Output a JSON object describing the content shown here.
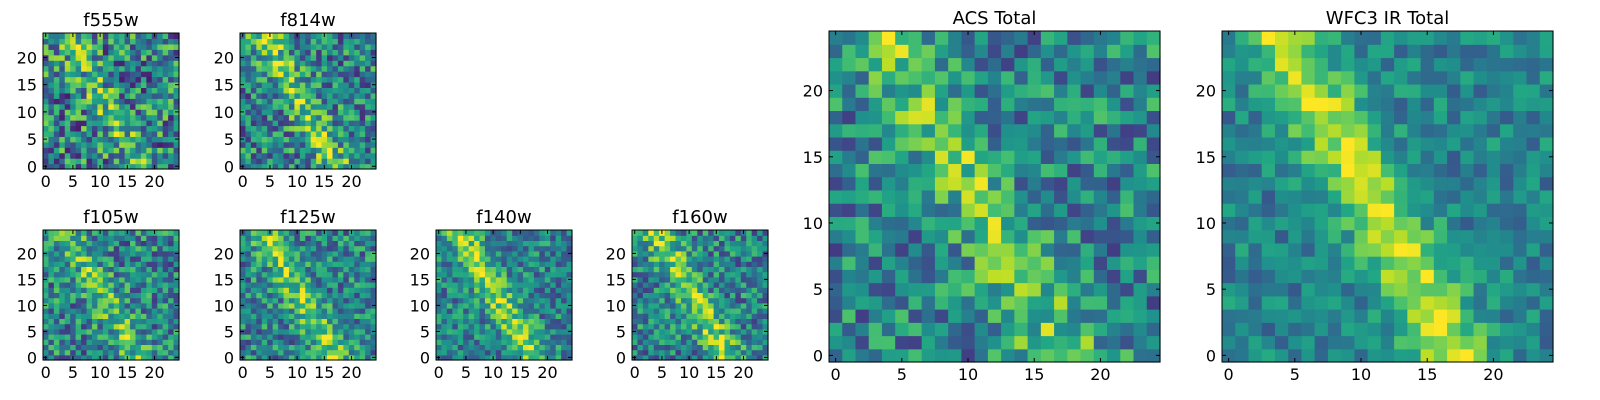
{
  "figure": {
    "colormap": "viridis",
    "colors": {
      "low": "#440154",
      "mid": "#21918c",
      "high": "#fde725",
      "axis": "#000000"
    }
  },
  "chart_data": [
    {
      "type": "heatmap",
      "title": "f555w",
      "grid_size": 25,
      "seed": 11,
      "signal": 0.35,
      "noise": 0.75,
      "xticks": [
        0,
        5,
        10,
        15,
        20
      ],
      "yticks": [
        0,
        5,
        10,
        15,
        20
      ],
      "xlim": [
        0,
        24
      ],
      "ylim": [
        0,
        24
      ]
    },
    {
      "type": "heatmap",
      "title": "f814w",
      "grid_size": 25,
      "seed": 23,
      "signal": 0.55,
      "noise": 0.65,
      "xticks": [
        0,
        5,
        10,
        15,
        20
      ],
      "yticks": [
        0,
        5,
        10,
        15,
        20
      ],
      "xlim": [
        0,
        24
      ],
      "ylim": [
        0,
        24
      ]
    },
    {
      "type": "heatmap",
      "title": "f105w",
      "grid_size": 25,
      "seed": 37,
      "signal": 0.45,
      "noise": 0.6,
      "xticks": [
        0,
        5,
        10,
        15,
        20
      ],
      "yticks": [
        0,
        5,
        10,
        15,
        20
      ],
      "xlim": [
        0,
        24
      ],
      "ylim": [
        0,
        24
      ]
    },
    {
      "type": "heatmap",
      "title": "f125w",
      "grid_size": 25,
      "seed": 41,
      "signal": 0.55,
      "noise": 0.55,
      "xticks": [
        0,
        5,
        10,
        15,
        20
      ],
      "yticks": [
        0,
        5,
        10,
        15,
        20
      ],
      "xlim": [
        0,
        24
      ],
      "ylim": [
        0,
        24
      ]
    },
    {
      "type": "heatmap",
      "title": "f140w",
      "grid_size": 25,
      "seed": 53,
      "signal": 0.6,
      "noise": 0.5,
      "xticks": [
        0,
        5,
        10,
        15,
        20
      ],
      "yticks": [
        0,
        5,
        10,
        15,
        20
      ],
      "xlim": [
        0,
        24
      ],
      "ylim": [
        0,
        24
      ]
    },
    {
      "type": "heatmap",
      "title": "f160w",
      "grid_size": 25,
      "seed": 67,
      "signal": 0.6,
      "noise": 0.55,
      "xticks": [
        0,
        5,
        10,
        15,
        20
      ],
      "yticks": [
        0,
        5,
        10,
        15,
        20
      ],
      "xlim": [
        0,
        24
      ],
      "ylim": [
        0,
        24
      ]
    },
    {
      "type": "heatmap",
      "title": "ACS Total",
      "grid_size": 25,
      "seed": 71,
      "signal": 0.5,
      "noise": 0.55,
      "xticks": [
        0,
        5,
        10,
        15,
        20
      ],
      "yticks": [
        0,
        5,
        10,
        15,
        20
      ],
      "xlim": [
        0,
        24
      ],
      "ylim": [
        0,
        24
      ]
    },
    {
      "type": "heatmap",
      "title": "WFC3 IR Total",
      "grid_size": 25,
      "seed": 89,
      "signal": 0.75,
      "noise": 0.35,
      "xticks": [
        0,
        5,
        10,
        15,
        20
      ],
      "yticks": [
        0,
        5,
        10,
        15,
        20
      ],
      "xlim": [
        0,
        24
      ],
      "ylim": [
        0,
        24
      ]
    }
  ]
}
